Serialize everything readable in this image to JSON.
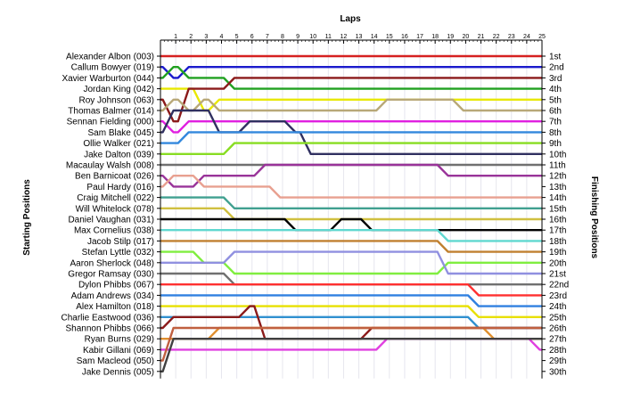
{
  "chart_data": {
    "type": "line",
    "title": "",
    "top_axis_label": "Laps",
    "left_axis_label": "Starting Positions",
    "right_axis_label": "Finishing Positions",
    "laps": [
      1,
      2,
      3,
      4,
      5,
      6,
      7,
      8,
      9,
      10,
      11,
      12,
      13,
      14,
      15,
      16,
      17,
      18,
      19,
      20,
      21,
      22,
      23,
      24,
      25
    ],
    "finishing_position_labels": [
      "1st",
      "2nd",
      "3rd",
      "4th",
      "5th",
      "6th",
      "7th",
      "8th",
      "9th",
      "10th",
      "11th",
      "12th",
      "13th",
      "14th",
      "15th",
      "16th",
      "17th",
      "18th",
      "19th",
      "20th",
      "21st",
      "22nd",
      "23rd",
      "24th",
      "25th",
      "26th",
      "27th",
      "28th",
      "29th",
      "30th"
    ],
    "y_range": [
      1,
      30
    ],
    "grid": true,
    "series": [
      {
        "name": "Alexander Albon (003)",
        "start": 1,
        "color": "#d62020",
        "positions": [
          1,
          1,
          1,
          1,
          1,
          1,
          1,
          1,
          1,
          1,
          1,
          1,
          1,
          1,
          1,
          1,
          1,
          1,
          1,
          1,
          1,
          1,
          1,
          1,
          1
        ]
      },
      {
        "name": "Callum Bowyer (019)",
        "start": 2,
        "color": "#1a1acc",
        "positions": [
          3,
          2,
          2,
          2,
          2,
          2,
          2,
          2,
          2,
          2,
          2,
          2,
          2,
          2,
          2,
          2,
          2,
          2,
          2,
          2,
          2,
          2,
          2,
          2,
          2
        ]
      },
      {
        "name": "Xavier Warburton (044)",
        "start": 3,
        "color": "#20a020",
        "positions": [
          2,
          3,
          3,
          3,
          4,
          4,
          4,
          4,
          4,
          4,
          4,
          4,
          4,
          4,
          4,
          4,
          4,
          4,
          4,
          4,
          4,
          4,
          4,
          4,
          4
        ]
      },
      {
        "name": "Jordan King (042)",
        "start": 4,
        "color": "#e8e800",
        "positions": [
          4,
          4,
          6,
          5,
          5,
          5,
          5,
          5,
          5,
          5,
          5,
          5,
          5,
          5,
          5,
          5,
          5,
          5,
          5,
          5,
          5,
          5,
          5,
          5,
          5
        ]
      },
      {
        "name": "Roy Johnson (063)",
        "start": 5,
        "color": "#8b1a1a",
        "positions": [
          7,
          4,
          4,
          4,
          3,
          3,
          3,
          3,
          3,
          3,
          3,
          3,
          3,
          3,
          3,
          3,
          3,
          3,
          3,
          3,
          3,
          3,
          3,
          3,
          3
        ]
      },
      {
        "name": "Thomas Balmer (014)",
        "start": 6,
        "color": "#b8a878",
        "positions": [
          5,
          6,
          5,
          6,
          6,
          6,
          6,
          6,
          6,
          6,
          6,
          6,
          6,
          6,
          5,
          5,
          5,
          5,
          5,
          6,
          6,
          6,
          6,
          6,
          6
        ]
      },
      {
        "name": "Sennan Fielding (000)",
        "start": 7,
        "color": "#e020e0",
        "positions": [
          8,
          7,
          7,
          7,
          7,
          7,
          7,
          7,
          7,
          7,
          7,
          7,
          7,
          7,
          7,
          7,
          7,
          7,
          7,
          7,
          7,
          7,
          7,
          7,
          7
        ]
      },
      {
        "name": "Sam Blake (045)",
        "start": 8,
        "color": "#303060",
        "positions": [
          6,
          6,
          6,
          8,
          8,
          7,
          7,
          7,
          8,
          10,
          10,
          10,
          10,
          10,
          10,
          10,
          10,
          10,
          10,
          10,
          10,
          10,
          10,
          10,
          10
        ]
      },
      {
        "name": "Ollie Walker (021)",
        "start": 9,
        "color": "#3388dd",
        "positions": [
          9,
          8,
          8,
          8,
          8,
          8,
          8,
          8,
          8,
          8,
          8,
          8,
          8,
          8,
          8,
          8,
          8,
          8,
          8,
          8,
          8,
          8,
          8,
          8,
          8
        ]
      },
      {
        "name": "Jake Dalton (039)",
        "start": 10,
        "color": "#88dd22",
        "positions": [
          10,
          10,
          10,
          10,
          9,
          9,
          9,
          9,
          9,
          9,
          9,
          9,
          9,
          9,
          9,
          9,
          9,
          9,
          9,
          9,
          9,
          9,
          9,
          9,
          9
        ]
      },
      {
        "name": "Macaulay Walsh (008)",
        "start": 11,
        "color": "#707070",
        "positions": [
          11,
          11,
          11,
          11,
          11,
          11,
          11,
          11,
          11,
          11,
          11,
          11,
          11,
          11,
          11,
          11,
          11,
          11,
          11,
          11,
          11,
          11,
          11,
          11,
          11
        ]
      },
      {
        "name": "Ben Barnicoat (026)",
        "start": 12,
        "color": "#993399",
        "positions": [
          13,
          13,
          12,
          12,
          12,
          12,
          11,
          11,
          11,
          11,
          11,
          11,
          11,
          11,
          11,
          11,
          11,
          11,
          12,
          12,
          12,
          12,
          12,
          12,
          12
        ]
      },
      {
        "name": "Paul Hardy (016)",
        "start": 13,
        "color": "#e8a090",
        "positions": [
          12,
          12,
          13,
          13,
          13,
          13,
          13,
          14,
          14,
          14,
          14,
          14,
          14,
          14,
          14,
          14,
          14,
          14,
          14,
          14,
          14,
          14,
          14,
          14,
          14
        ]
      },
      {
        "name": "Craig Mitchell (022)",
        "start": 14,
        "color": "#40a090",
        "positions": [
          14,
          14,
          14,
          14,
          15,
          15,
          15,
          15,
          15,
          15,
          15,
          15,
          15,
          15,
          15,
          15,
          15,
          15,
          15,
          15,
          15,
          15,
          15,
          15,
          15
        ]
      },
      {
        "name": "Will Whitelock (078)",
        "start": 15,
        "color": "#d0c040",
        "positions": [
          15,
          15,
          15,
          15,
          16,
          16,
          16,
          16,
          16,
          16,
          16,
          16,
          16,
          16,
          16,
          16,
          16,
          16,
          16,
          16,
          16,
          16,
          16,
          16,
          16
        ]
      },
      {
        "name": "Daniel Vaughan (031)",
        "start": 16,
        "color": "#000000",
        "positions": [
          16,
          16,
          16,
          16,
          16,
          16,
          16,
          16,
          17,
          17,
          17,
          16,
          16,
          17,
          17,
          17,
          17,
          17,
          17,
          17,
          17,
          17,
          17,
          17,
          17
        ]
      },
      {
        "name": "Max Cornelius (038)",
        "start": 17,
        "color": "#60d8d0",
        "positions": [
          17,
          17,
          17,
          17,
          17,
          17,
          17,
          17,
          17,
          17,
          17,
          17,
          17,
          17,
          17,
          17,
          17,
          17,
          18,
          18,
          18,
          18,
          18,
          18,
          18
        ]
      },
      {
        "name": "Jacob Stilp (017)",
        "start": 18,
        "color": "#c08030",
        "positions": [
          18,
          18,
          18,
          18,
          18,
          18,
          18,
          18,
          18,
          18,
          18,
          18,
          18,
          18,
          18,
          18,
          18,
          18,
          19,
          19,
          19,
          19,
          19,
          19,
          19
        ]
      },
      {
        "name": "Stefan Lyttle (032)",
        "start": 19,
        "color": "#80ee40",
        "positions": [
          19,
          19,
          20,
          20,
          21,
          21,
          21,
          21,
          21,
          21,
          21,
          21,
          21,
          21,
          21,
          21,
          21,
          21,
          20,
          20,
          20,
          20,
          20,
          20,
          20
        ]
      },
      {
        "name": "Aaron Sherlock (048)",
        "start": 20,
        "color": "#9090e0",
        "positions": [
          20,
          20,
          20,
          20,
          19,
          19,
          19,
          19,
          19,
          19,
          19,
          19,
          19,
          19,
          19,
          19,
          19,
          19,
          21,
          21,
          21,
          21,
          21,
          21,
          21
        ]
      },
      {
        "name": "Gregor Ramsay (030)",
        "start": 21,
        "color": "#707070",
        "positions": [
          21,
          21,
          21,
          21,
          22,
          22,
          22,
          22,
          22,
          22,
          22,
          22,
          22,
          22,
          22,
          22,
          22,
          22,
          22,
          22,
          22,
          22,
          22,
          22,
          22
        ]
      },
      {
        "name": "Dylon Phibbs (067)",
        "start": 22,
        "color": "#ff3030",
        "positions": [
          22,
          22,
          22,
          22,
          22,
          22,
          22,
          22,
          22,
          22,
          22,
          22,
          22,
          22,
          22,
          22,
          22,
          22,
          22,
          22,
          23,
          23,
          23,
          23,
          23
        ]
      },
      {
        "name": "Adam Andrews (034)",
        "start": 23,
        "color": "#3080e0",
        "positions": [
          23,
          23,
          23,
          23,
          23,
          23,
          23,
          23,
          23,
          23,
          23,
          23,
          23,
          23,
          23,
          23,
          23,
          23,
          23,
          23,
          24,
          24,
          24,
          24,
          24
        ]
      },
      {
        "name": "Alex Hamilton (018)",
        "start": 24,
        "color": "#e8e000",
        "positions": [
          24,
          24,
          24,
          24,
          24,
          24,
          24,
          24,
          24,
          24,
          24,
          24,
          24,
          24,
          24,
          24,
          24,
          24,
          24,
          24,
          25,
          25,
          25,
          25,
          25
        ]
      },
      {
        "name": "Charlie Eastwood (036)",
        "start": 25,
        "color": "#3090d0",
        "positions": [
          25,
          25,
          25,
          25,
          25,
          25,
          25,
          25,
          25,
          25,
          25,
          25,
          25,
          25,
          25,
          25,
          25,
          25,
          25,
          25,
          26,
          26,
          26,
          26,
          26
        ]
      },
      {
        "name": "Shannon Phibbs (066)",
        "start": 26,
        "color": "#8b1a1a",
        "positions": [
          25,
          25,
          25,
          25,
          25,
          24,
          27,
          27,
          27,
          27,
          27,
          27,
          27,
          26,
          26,
          26,
          26,
          26,
          26,
          26,
          26,
          26,
          26,
          26,
          26
        ]
      },
      {
        "name": "Ryan Burns (029)",
        "start": 27,
        "color": "#e09030",
        "positions": [
          27,
          27,
          27,
          26,
          26,
          26,
          26,
          26,
          26,
          26,
          26,
          26,
          26,
          26,
          26,
          26,
          26,
          26,
          26,
          26,
          26,
          27,
          27,
          27,
          27
        ]
      },
      {
        "name": "Kabir Gillani (069)",
        "start": 28,
        "color": "#e040e0",
        "positions": [
          28,
          28,
          28,
          28,
          28,
          28,
          28,
          28,
          28,
          28,
          28,
          28,
          28,
          28,
          27,
          27,
          27,
          27,
          27,
          27,
          27,
          27,
          27,
          27,
          28
        ]
      },
      {
        "name": "Sam Macleod (050)",
        "start": 29,
        "color": "#c06040",
        "positions": [
          26,
          26,
          26,
          26,
          26,
          26,
          26,
          26,
          26,
          26,
          26,
          26,
          26,
          26,
          26,
          26,
          26,
          26,
          26,
          26,
          26,
          26,
          26,
          26,
          26
        ]
      },
      {
        "name": "Jake Dennis (005)",
        "start": 30,
        "color": "#404040",
        "positions": [
          27,
          27,
          27,
          27,
          27,
          27,
          27,
          27,
          27,
          27,
          27,
          27,
          27,
          27,
          27,
          27,
          27,
          27,
          27,
          27,
          27,
          27,
          27,
          27,
          27
        ]
      }
    ]
  }
}
